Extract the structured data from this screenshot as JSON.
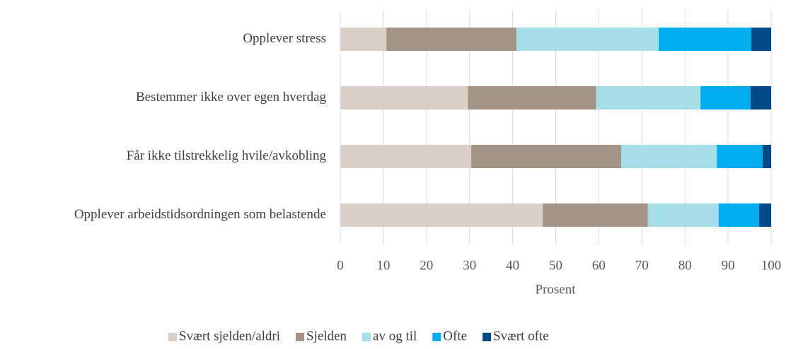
{
  "chart_data": {
    "type": "stacked_barh",
    "categories": [
      "Opplever stress",
      "Bestemmer ikke over egen hverdag",
      "Får ikke tilstrekkelig hvile/avkobling",
      "Opplever arbeidstidsordningen som belastende"
    ],
    "series": [
      {
        "name": "Svært sjelden/aldri",
        "color": "#d9cfc6",
        "values": [
          10.7,
          29.6,
          30.4,
          47.0
        ]
      },
      {
        "name": "Sjelden",
        "color": "#a39486",
        "values": [
          30.2,
          29.8,
          34.8,
          24.4
        ]
      },
      {
        "name": "av og til",
        "color": "#a5dde9",
        "values": [
          33.0,
          24.2,
          22.2,
          16.4
        ]
      },
      {
        "name": "Ofte",
        "color": "#00aeef",
        "values": [
          21.5,
          11.6,
          10.6,
          9.4
        ]
      },
      {
        "name": "Svært ofte",
        "color": "#004a87",
        "values": [
          4.6,
          4.8,
          2.0,
          2.8
        ]
      }
    ],
    "xlabel": "Prosent",
    "xlim": [
      0,
      100
    ],
    "xticks": [
      0,
      10,
      20,
      30,
      40,
      50,
      60,
      70,
      80,
      90,
      100
    ],
    "grid": true,
    "legend": "bottom"
  }
}
